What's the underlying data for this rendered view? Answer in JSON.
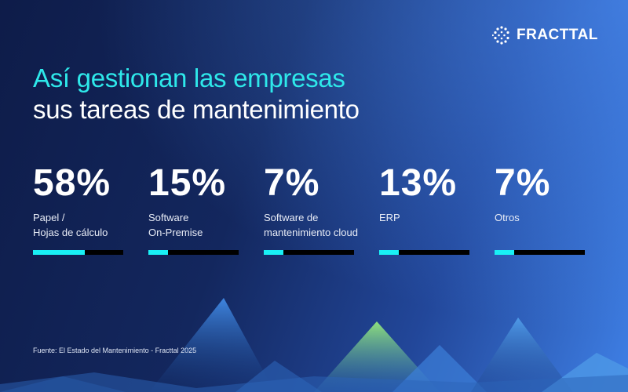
{
  "brand": {
    "name": "FRACTTAL",
    "icon": "dotted-circle-logo-icon"
  },
  "title": {
    "line1": "Así gestionan las empresas",
    "line2": "sus tareas de mantenimiento"
  },
  "colors": {
    "accent": "#2ee8ea",
    "bar_fill": "#19f0f5",
    "bar_track": "#000000",
    "background_dark": "#0e1c49",
    "background_light": "#3f80e6"
  },
  "stats": [
    {
      "value": "58%",
      "label_line1": "Papel /",
      "label_line2": "Hojas de cálculo",
      "bar_fill": 0.57
    },
    {
      "value": "15%",
      "label_line1": "Software",
      "label_line2": "On-Premise",
      "bar_fill": 0.22
    },
    {
      "value": "7%",
      "label_line1": "Software de",
      "label_line2": "mantenimiento cloud",
      "bar_fill": 0.22
    },
    {
      "value": "13%",
      "label_line1": "ERP",
      "label_line2": "",
      "bar_fill": 0.22
    },
    {
      "value": "7%",
      "label_line1": "Otros",
      "label_line2": "",
      "bar_fill": 0.22
    }
  ],
  "source": "Fuente: El Estado del Mantenimiento - Fracttal 2025",
  "chart_data": {
    "type": "bar",
    "title": "Así gestionan las empresas sus tareas de mantenimiento",
    "categories": [
      "Papel / Hojas de cálculo",
      "Software On-Premise",
      "Software de mantenimiento cloud",
      "ERP",
      "Otros"
    ],
    "values": [
      58,
      15,
      7,
      13,
      7
    ],
    "unit": "%"
  }
}
